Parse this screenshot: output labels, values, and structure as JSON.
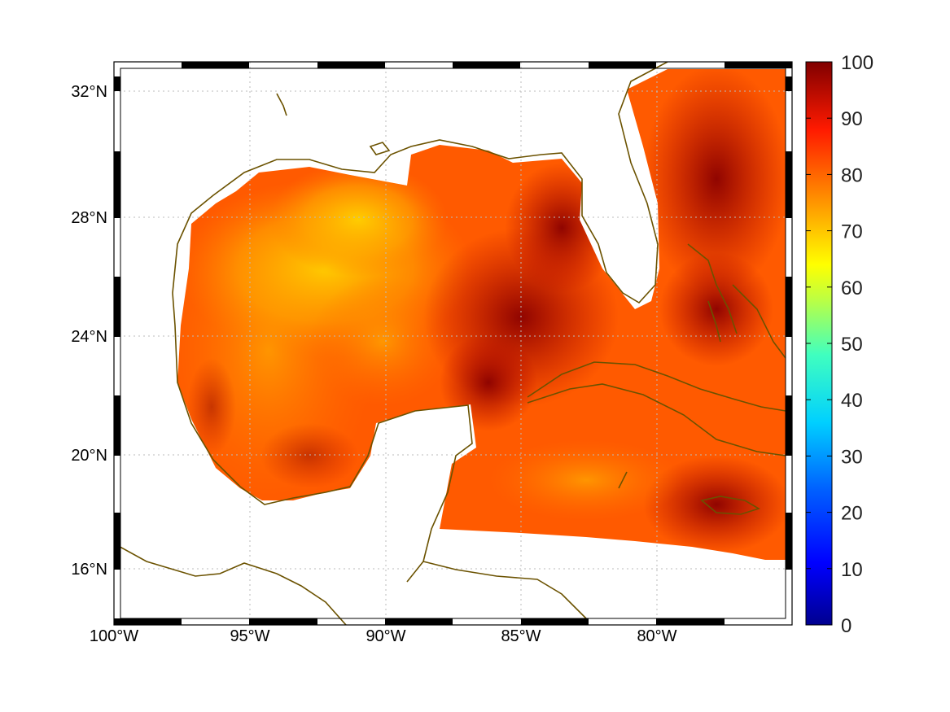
{
  "map": {
    "projection": "mercator",
    "lon_range": [
      -100,
      -75
    ],
    "lat_range": [
      14.2,
      33
    ],
    "lon_ticks": [
      "100°W",
      "95°W",
      "90°W",
      "85°W",
      "80°W"
    ],
    "lat_ticks": [
      "16°N",
      "20°N",
      "24°N",
      "28°N",
      "32°N"
    ],
    "grid": true,
    "coastline_color": "#6b5200",
    "colormap": "jet"
  },
  "colorbar": {
    "min": 0,
    "max": 100,
    "labels": [
      "0",
      "10",
      "20",
      "30",
      "40",
      "50",
      "60",
      "70",
      "80",
      "90",
      "100"
    ],
    "colors": [
      "#00008f",
      "#0000ff",
      "#0080ff",
      "#00ffff",
      "#80ff80",
      "#ffff00",
      "#ff8000",
      "#ff0000",
      "#800000"
    ]
  },
  "field": {
    "description_values": {
      "western_gulf_typical": 78,
      "north_central_gulf_min": 66,
      "eastern_gulf_max": 97,
      "caribbean_typical": 88,
      "atlantic_typical": 92
    }
  }
}
